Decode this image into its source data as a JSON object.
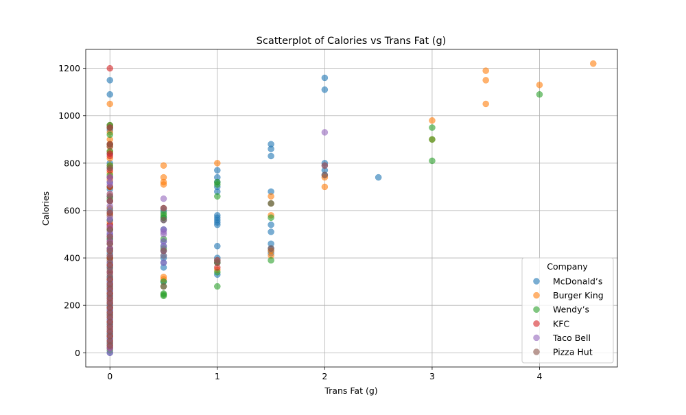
{
  "chart_data": {
    "type": "scatter",
    "title": "Scatterplot of Calories vs Trans Fat (g)",
    "xlabel": "Trans Fat (g)",
    "ylabel": "Calories",
    "xlim": [
      -0.225,
      4.725
    ],
    "ylim": [
      -60,
      1280
    ],
    "xticks": [
      0,
      1,
      2,
      3,
      4
    ],
    "yticks": [
      0,
      200,
      400,
      600,
      800,
      1000,
      1200
    ],
    "grid": true,
    "legend": {
      "title": "Company",
      "placement": "bottom-right"
    },
    "series": [
      {
        "name": "McDonald’s",
        "color": "#1f77b4",
        "points": [
          [
            0,
            1150
          ],
          [
            0,
            1090
          ],
          [
            0,
            960
          ],
          [
            0,
            940
          ],
          [
            0,
            880
          ],
          [
            0,
            840
          ],
          [
            0,
            800
          ],
          [
            0,
            780
          ],
          [
            0,
            740
          ],
          [
            0,
            720
          ],
          [
            0,
            690
          ],
          [
            0,
            660
          ],
          [
            0,
            640
          ],
          [
            0,
            610
          ],
          [
            0,
            580
          ],
          [
            0,
            560
          ],
          [
            0,
            540
          ],
          [
            0,
            520
          ],
          [
            0,
            500
          ],
          [
            0,
            480
          ],
          [
            0,
            460
          ],
          [
            0,
            440
          ],
          [
            0,
            420
          ],
          [
            0,
            400
          ],
          [
            0,
            380
          ],
          [
            0,
            360
          ],
          [
            0,
            340
          ],
          [
            0,
            320
          ],
          [
            0,
            300
          ],
          [
            0,
            280
          ],
          [
            0,
            260
          ],
          [
            0,
            240
          ],
          [
            0,
            220
          ],
          [
            0,
            200
          ],
          [
            0,
            180
          ],
          [
            0,
            160
          ],
          [
            0,
            140
          ],
          [
            0,
            120
          ],
          [
            0,
            100
          ],
          [
            0,
            80
          ],
          [
            0,
            60
          ],
          [
            0,
            40
          ],
          [
            0,
            20
          ],
          [
            0,
            0
          ],
          [
            0.5,
            600
          ],
          [
            0.5,
            570
          ],
          [
            0.5,
            560
          ],
          [
            0.5,
            520
          ],
          [
            0.5,
            470
          ],
          [
            0.5,
            450
          ],
          [
            0.5,
            430
          ],
          [
            0.5,
            400
          ],
          [
            0.5,
            380
          ],
          [
            0.5,
            360
          ],
          [
            0.5,
            300
          ],
          [
            1,
            770
          ],
          [
            1,
            740
          ],
          [
            1,
            720
          ],
          [
            1,
            700
          ],
          [
            1,
            680
          ],
          [
            1,
            580
          ],
          [
            1,
            570
          ],
          [
            1,
            560
          ],
          [
            1,
            550
          ],
          [
            1,
            540
          ],
          [
            1,
            450
          ],
          [
            1,
            400
          ],
          [
            1,
            380
          ],
          [
            1,
            330
          ],
          [
            1.5,
            880
          ],
          [
            1.5,
            860
          ],
          [
            1.5,
            830
          ],
          [
            1.5,
            680
          ],
          [
            1.5,
            540
          ],
          [
            1.5,
            510
          ],
          [
            1.5,
            460
          ],
          [
            1.5,
            440
          ],
          [
            1.5,
            430
          ],
          [
            1.5,
            420
          ],
          [
            2,
            1160
          ],
          [
            2,
            1110
          ],
          [
            2,
            800
          ],
          [
            2,
            770
          ],
          [
            2,
            750
          ],
          [
            2.5,
            740
          ]
        ]
      },
      {
        "name": "Burger King",
        "color": "#ff7f0e",
        "points": [
          [
            0,
            1050
          ],
          [
            0,
            960
          ],
          [
            0,
            930
          ],
          [
            0,
            900
          ],
          [
            0,
            870
          ],
          [
            0,
            850
          ],
          [
            0,
            820
          ],
          [
            0,
            790
          ],
          [
            0,
            760
          ],
          [
            0,
            730
          ],
          [
            0,
            700
          ],
          [
            0,
            670
          ],
          [
            0,
            640
          ],
          [
            0,
            610
          ],
          [
            0,
            580
          ],
          [
            0,
            550
          ],
          [
            0,
            520
          ],
          [
            0,
            490
          ],
          [
            0,
            460
          ],
          [
            0,
            430
          ],
          [
            0,
            400
          ],
          [
            0,
            370
          ],
          [
            0,
            340
          ],
          [
            0,
            310
          ],
          [
            0,
            280
          ],
          [
            0,
            250
          ],
          [
            0,
            220
          ],
          [
            0,
            190
          ],
          [
            0,
            160
          ],
          [
            0,
            130
          ],
          [
            0,
            100
          ],
          [
            0,
            70
          ],
          [
            0,
            40
          ],
          [
            0.5,
            790
          ],
          [
            0.5,
            740
          ],
          [
            0.5,
            720
          ],
          [
            0.5,
            710
          ],
          [
            0.5,
            610
          ],
          [
            0.5,
            320
          ],
          [
            0.5,
            310
          ],
          [
            1,
            800
          ],
          [
            1,
            390
          ],
          [
            1,
            350
          ],
          [
            1.5,
            660
          ],
          [
            1.5,
            580
          ],
          [
            1.5,
            430
          ],
          [
            1.5,
            410
          ],
          [
            2,
            740
          ],
          [
            2,
            700
          ],
          [
            3,
            980
          ],
          [
            3,
            900
          ],
          [
            3.5,
            1190
          ],
          [
            3.5,
            1150
          ],
          [
            3.5,
            1050
          ],
          [
            4,
            1130
          ],
          [
            4.5,
            1220
          ]
        ]
      },
      {
        "name": "Wendy’s",
        "color": "#2ca02c",
        "points": [
          [
            0,
            960
          ],
          [
            0,
            950
          ],
          [
            0,
            920
          ],
          [
            0,
            880
          ],
          [
            0,
            850
          ],
          [
            0,
            790
          ],
          [
            0,
            750
          ],
          [
            0,
            700
          ],
          [
            0,
            650
          ],
          [
            0,
            600
          ],
          [
            0,
            560
          ],
          [
            0,
            520
          ],
          [
            0,
            480
          ],
          [
            0,
            440
          ],
          [
            0,
            400
          ],
          [
            0,
            360
          ],
          [
            0,
            320
          ],
          [
            0,
            280
          ],
          [
            0,
            240
          ],
          [
            0,
            200
          ],
          [
            0,
            160
          ],
          [
            0,
            120
          ],
          [
            0,
            80
          ],
          [
            0,
            40
          ],
          [
            0,
            10
          ],
          [
            0.5,
            590
          ],
          [
            0.5,
            580
          ],
          [
            0.5,
            570
          ],
          [
            0.5,
            480
          ],
          [
            0.5,
            440
          ],
          [
            0.5,
            410
          ],
          [
            0.5,
            300
          ],
          [
            0.5,
            280
          ],
          [
            0.5,
            250
          ],
          [
            0.5,
            245
          ],
          [
            0.5,
            240
          ],
          [
            1,
            720
          ],
          [
            1,
            710
          ],
          [
            1,
            660
          ],
          [
            1,
            380
          ],
          [
            1,
            340
          ],
          [
            1,
            280
          ],
          [
            1.5,
            630
          ],
          [
            1.5,
            570
          ],
          [
            1.5,
            390
          ],
          [
            3,
            950
          ],
          [
            3,
            900
          ],
          [
            3,
            810
          ],
          [
            4,
            1090
          ]
        ]
      },
      {
        "name": "KFC",
        "color": "#d62728",
        "points": [
          [
            0,
            1200
          ],
          [
            0,
            950
          ],
          [
            0,
            880
          ],
          [
            0,
            840
          ],
          [
            0,
            830
          ],
          [
            0,
            770
          ],
          [
            0,
            740
          ],
          [
            0,
            700
          ],
          [
            0,
            640
          ],
          [
            0,
            590
          ],
          [
            0,
            540
          ],
          [
            0,
            530
          ],
          [
            0,
            470
          ],
          [
            0,
            440
          ],
          [
            0,
            400
          ],
          [
            0,
            370
          ],
          [
            0,
            340
          ],
          [
            0,
            310
          ],
          [
            0,
            290
          ],
          [
            0,
            270
          ],
          [
            0,
            250
          ],
          [
            0,
            230
          ],
          [
            0,
            210
          ],
          [
            0,
            190
          ],
          [
            0,
            170
          ],
          [
            0,
            150
          ],
          [
            0,
            130
          ],
          [
            0,
            110
          ],
          [
            0,
            90
          ],
          [
            0,
            70
          ],
          [
            0,
            50
          ],
          [
            0,
            30
          ],
          [
            0,
            20
          ],
          [
            1,
            360
          ]
        ]
      },
      {
        "name": "Taco Bell",
        "color": "#9467bd",
        "points": [
          [
            0,
            740
          ],
          [
            0,
            720
          ],
          [
            0,
            710
          ],
          [
            0,
            670
          ],
          [
            0,
            640
          ],
          [
            0,
            620
          ],
          [
            0,
            600
          ],
          [
            0,
            570
          ],
          [
            0,
            560
          ],
          [
            0,
            530
          ],
          [
            0,
            510
          ],
          [
            0,
            500
          ],
          [
            0,
            490
          ],
          [
            0,
            470
          ],
          [
            0,
            460
          ],
          [
            0,
            440
          ],
          [
            0,
            430
          ],
          [
            0,
            410
          ],
          [
            0,
            380
          ],
          [
            0,
            360
          ],
          [
            0,
            340
          ],
          [
            0,
            320
          ],
          [
            0,
            300
          ],
          [
            0,
            280
          ],
          [
            0,
            260
          ],
          [
            0,
            240
          ],
          [
            0,
            220
          ],
          [
            0,
            200
          ],
          [
            0,
            180
          ],
          [
            0,
            160
          ],
          [
            0,
            140
          ],
          [
            0,
            120
          ],
          [
            0,
            100
          ],
          [
            0,
            80
          ],
          [
            0,
            60
          ],
          [
            0,
            40
          ],
          [
            0,
            20
          ],
          [
            0,
            0
          ],
          [
            0.5,
            650
          ],
          [
            0.5,
            610
          ],
          [
            0.5,
            520
          ],
          [
            0.5,
            510
          ],
          [
            0.5,
            500
          ],
          [
            0.5,
            470
          ],
          [
            0.5,
            450
          ],
          [
            0.5,
            430
          ],
          [
            0.5,
            410
          ],
          [
            0.5,
            380
          ],
          [
            1,
            390
          ],
          [
            2,
            930
          ],
          [
            2,
            790
          ]
        ]
      },
      {
        "name": "Pizza Hut",
        "color": "#8c564b",
        "points": [
          [
            0,
            950
          ],
          [
            0,
            870
          ],
          [
            0,
            780
          ],
          [
            0,
            660
          ],
          [
            0,
            640
          ],
          [
            0,
            590
          ],
          [
            0,
            520
          ],
          [
            0,
            490
          ],
          [
            0,
            460
          ],
          [
            0,
            430
          ],
          [
            0,
            410
          ],
          [
            0,
            390
          ],
          [
            0,
            370
          ],
          [
            0,
            350
          ],
          [
            0,
            330
          ],
          [
            0,
            310
          ],
          [
            0,
            290
          ],
          [
            0,
            270
          ],
          [
            0,
            250
          ],
          [
            0,
            230
          ],
          [
            0,
            210
          ],
          [
            0,
            190
          ],
          [
            0,
            170
          ],
          [
            0,
            150
          ],
          [
            0,
            130
          ],
          [
            0,
            110
          ],
          [
            0,
            90
          ],
          [
            0,
            70
          ],
          [
            0,
            50
          ],
          [
            0,
            30
          ],
          [
            0.5,
            610
          ],
          [
            0.5,
            560
          ],
          [
            0.5,
            430
          ],
          [
            0.5,
            280
          ],
          [
            1,
            390
          ],
          [
            1,
            380
          ],
          [
            1.5,
            630
          ],
          [
            1.5,
            440
          ],
          [
            2,
            790
          ],
          [
            2,
            750
          ]
        ]
      }
    ]
  }
}
